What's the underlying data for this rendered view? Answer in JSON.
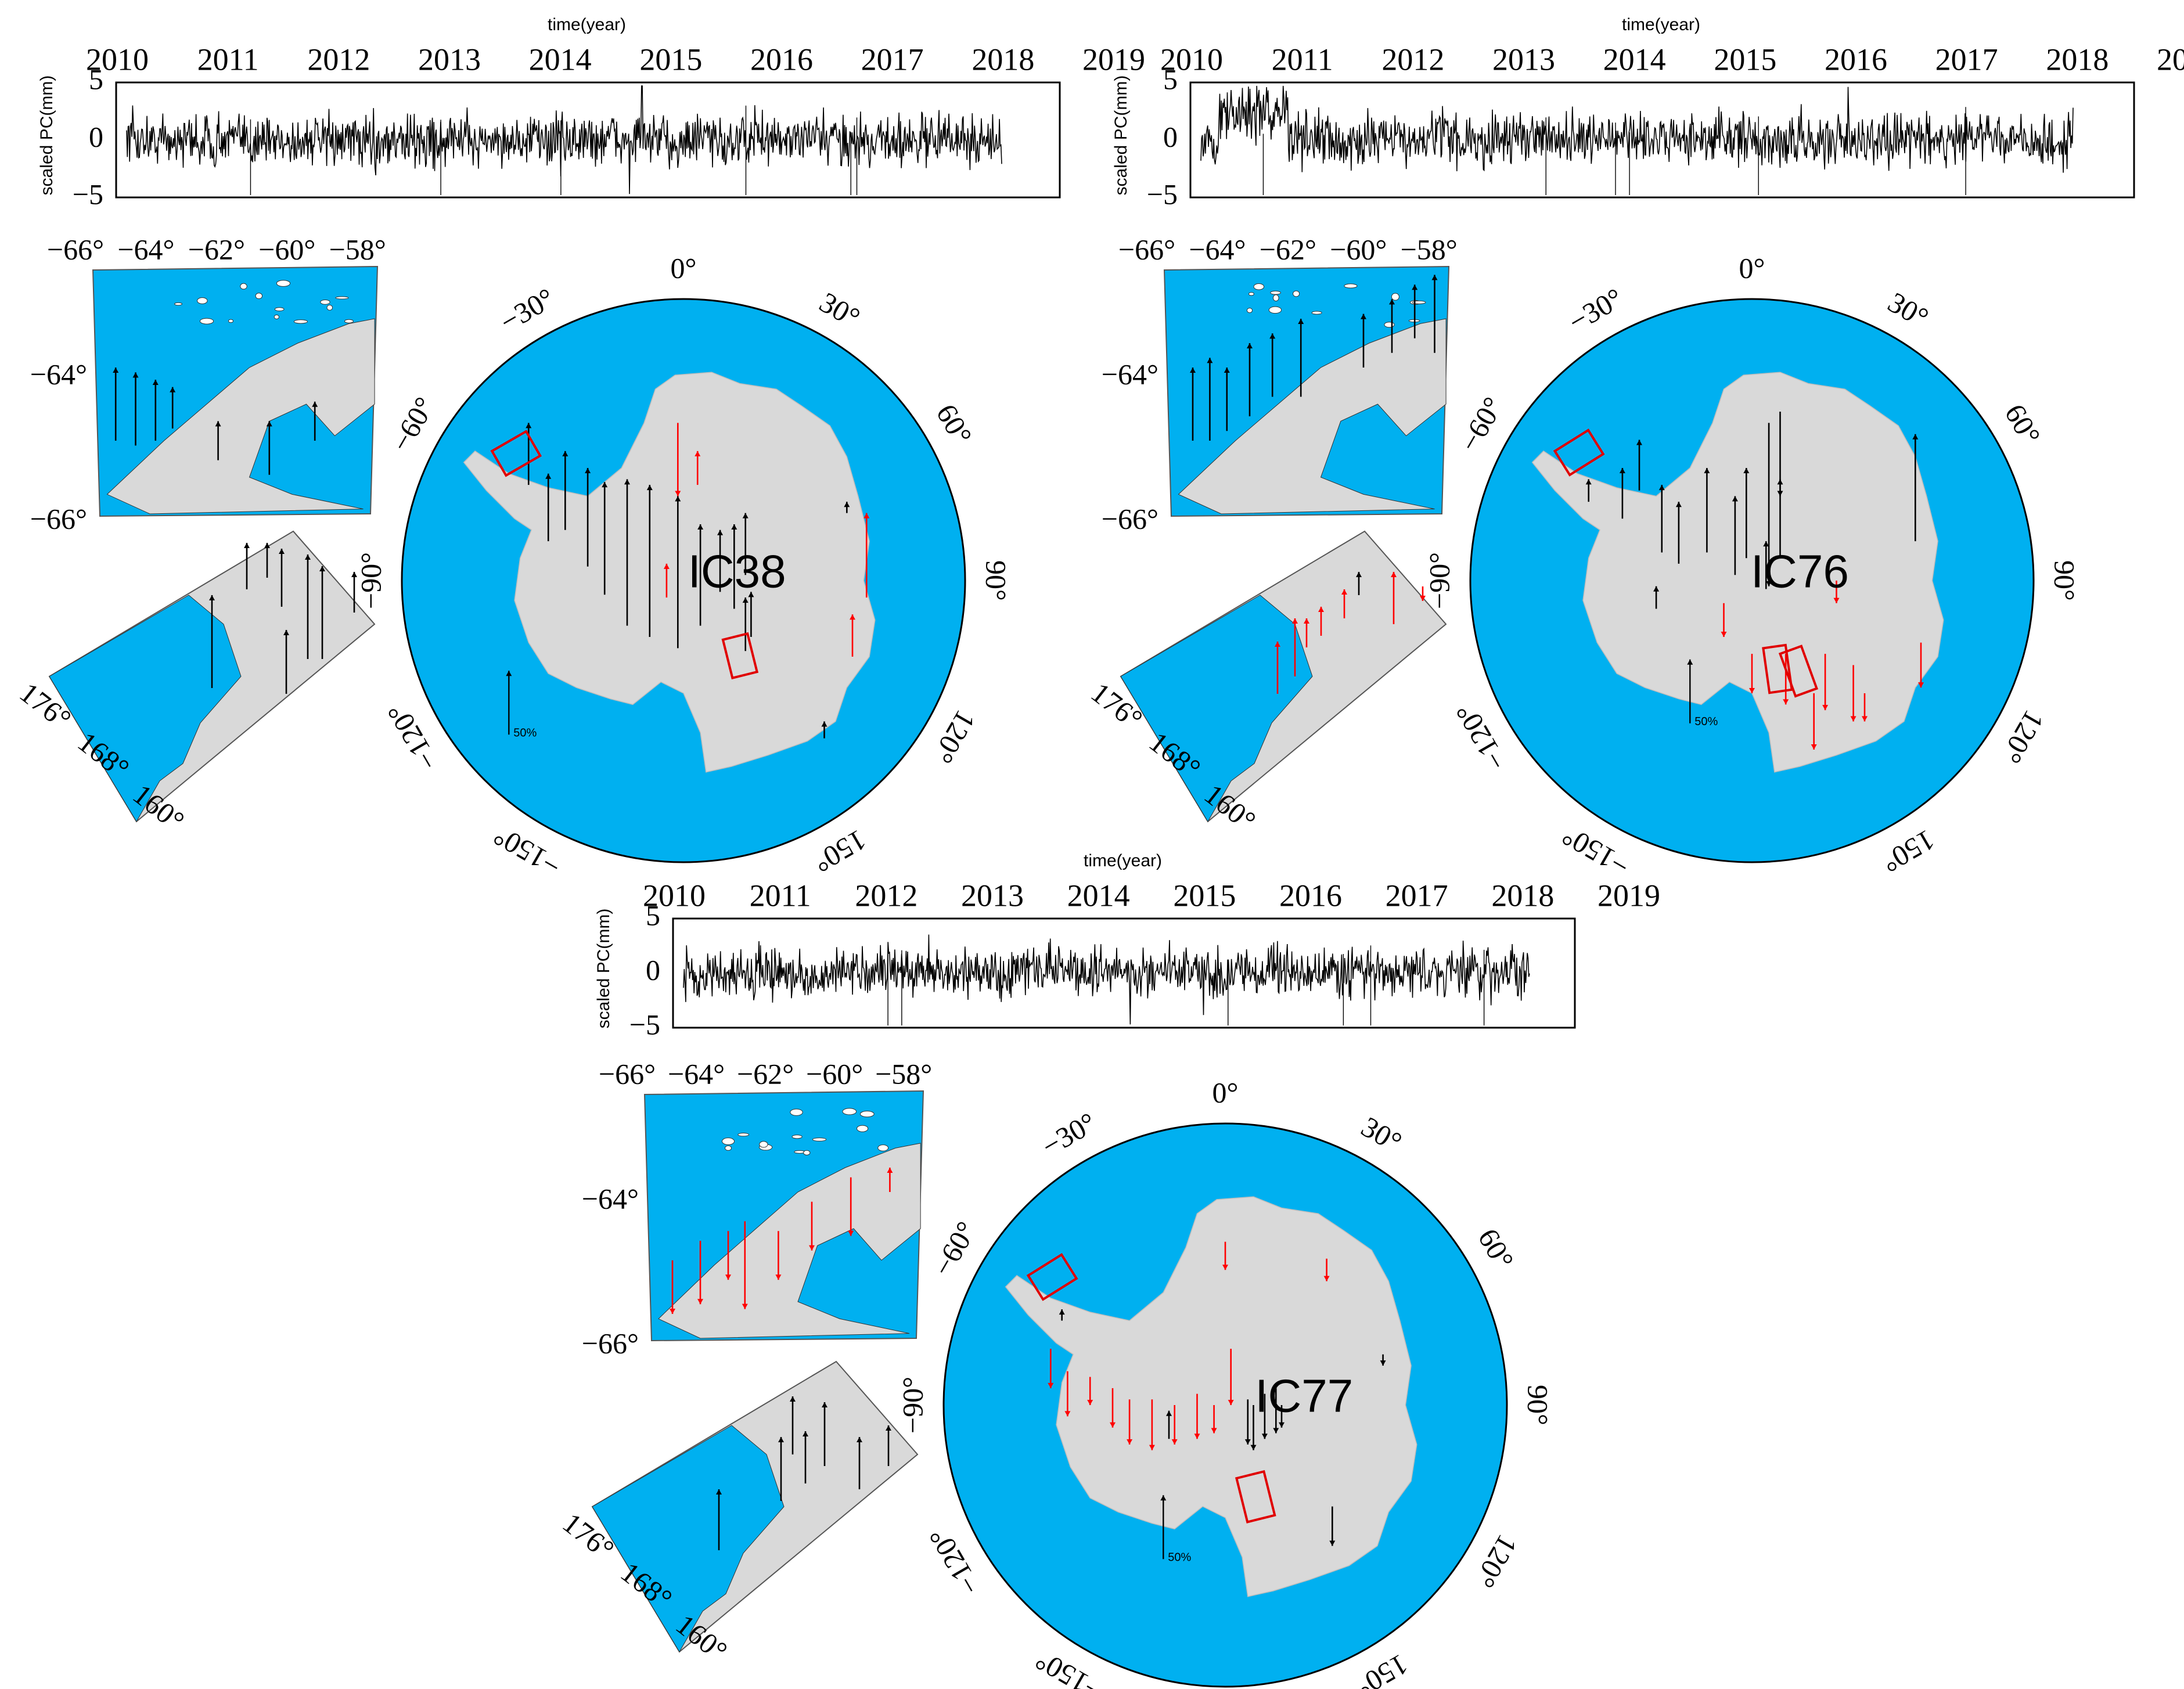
{
  "common": {
    "x_axis_title": "time(year)",
    "y_axis_title": "scaled PC(mm)",
    "year_ticks": [
      "2010",
      "2011",
      "2012",
      "2013",
      "2014",
      "2015",
      "2016",
      "2017",
      "2018",
      "2019"
    ],
    "y_ticks": [
      "5",
      "0",
      "−5"
    ],
    "peninsula_lon_ticks": [
      "−66°",
      "−64°",
      "−62°",
      "−60°",
      "−58°"
    ],
    "peninsula_lat_ticks": [
      "−64°",
      "−66°"
    ],
    "ross_lon_ticks": [
      "176°",
      "168°",
      "160°"
    ],
    "globe_lon_ticks": {
      "lon0": "0°",
      "lon30": "30°",
      "lon60": "60°",
      "lon90": "90°",
      "lon120": "120°",
      "lon150": "150°",
      "lonm30": "−30°",
      "lonm60": "−60°",
      "lonm90": "−90°",
      "lonm120": "−120°",
      "lonm150": "−150°"
    },
    "scale_label": "50%",
    "colors": {
      "ocean": "#00b0f0",
      "land": "#d9d9d9",
      "uplift_arrow": "#000000",
      "subsidence_arrow": "#ff0000",
      "box": "#e00000"
    }
  },
  "panels": [
    {
      "id": "IC38",
      "label": "IC38"
    },
    {
      "id": "IC76",
      "label": "IC76"
    },
    {
      "id": "IC77",
      "label": "IC77"
    }
  ],
  "chart_data": [
    {
      "type": "line",
      "panel": "IC38",
      "x_range": [
        "2010",
        "2019"
      ],
      "ylim": [
        -5,
        5
      ],
      "xlabel": "time(year)",
      "ylabel": "scaled PC(mm)"
    },
    {
      "type": "line",
      "panel": "IC76",
      "x_range": [
        "2010",
        "2019"
      ],
      "ylim": [
        -5,
        5
      ],
      "xlabel": "time(year)",
      "ylabel": "scaled PC(mm)"
    },
    {
      "type": "line",
      "panel": "IC77",
      "x_range": [
        "2010",
        "2019"
      ],
      "ylim": [
        -5,
        5
      ],
      "xlabel": "time(year)",
      "ylabel": "scaled PC(mm)"
    }
  ]
}
